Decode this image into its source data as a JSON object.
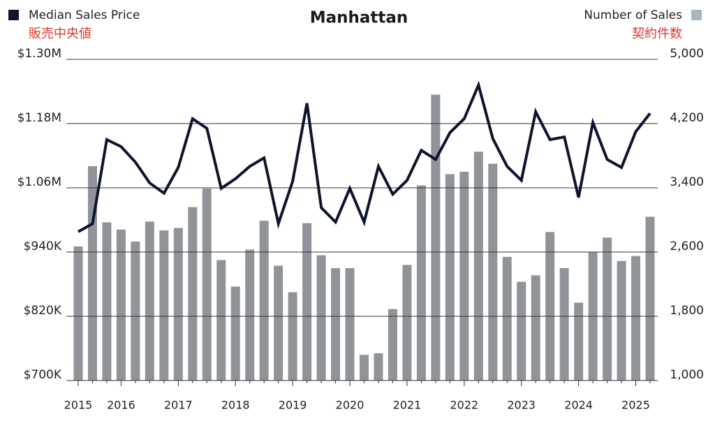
{
  "chart_data": {
    "type": "bar-line",
    "title": "Manhattan",
    "categories": [
      "2015",
      null,
      null,
      "2016",
      null,
      null,
      null,
      "2017",
      null,
      null,
      null,
      "2018",
      null,
      null,
      null,
      "2019",
      null,
      null,
      null,
      "2020",
      null,
      null,
      null,
      "2021",
      null,
      null,
      null,
      "2022",
      null,
      null,
      null,
      "2023",
      null,
      null,
      null,
      "2024",
      null,
      null,
      null,
      "2025",
      null
    ],
    "series": [
      {
        "name": "Median Sales Price",
        "label_ja": "販売中央値",
        "type": "line",
        "axis": "y",
        "color": "#0e1330",
        "values": [
          978000,
          993000,
          1150000,
          1137000,
          1108000,
          1069000,
          1050000,
          1098000,
          1189000,
          1171000,
          1059000,
          1077000,
          1100000,
          1116000,
          993000,
          1072000,
          1218000,
          1023000,
          996000,
          1059000,
          996000,
          1100000,
          1048000,
          1074000,
          1130000,
          1113000,
          1163000,
          1189000,
          1252000,
          1152000,
          1100000,
          1074000,
          1202000,
          1150000,
          1155000,
          1042000,
          1182000,
          1113000,
          1098000,
          1165000,
          1199000
        ]
      },
      {
        "name": "Number of Sales",
        "label_ja": "契約件数",
        "type": "bar",
        "axis": "y2",
        "color": "#909398",
        "values": [
          2670,
          3670,
          2970,
          2880,
          2730,
          2980,
          2870,
          2900,
          3160,
          3390,
          2500,
          2170,
          2630,
          2990,
          2430,
          2100,
          2960,
          2560,
          2400,
          2400,
          1320,
          1340,
          1890,
          2440,
          3430,
          4560,
          3570,
          3600,
          3850,
          3700,
          2540,
          2230,
          2310,
          2850,
          2400,
          1970,
          2600,
          2780,
          2490,
          2550,
          3040
        ]
      }
    ],
    "ylim": [
      700000,
      1300000
    ],
    "yticks": [
      {
        "value": 700000,
        "label": "$700K"
      },
      {
        "value": 820000,
        "label": "$820K"
      },
      {
        "value": 940000,
        "label": "$940K"
      },
      {
        "value": 1060000,
        "label": "$1.06M"
      },
      {
        "value": 1180000,
        "label": "$1.18M"
      },
      {
        "value": 1300000,
        "label": "$1.30M"
      }
    ],
    "y2lim": [
      1000,
      5000
    ],
    "y2ticks": [
      {
        "value": 1000,
        "label": "1,000"
      },
      {
        "value": 1800,
        "label": "1,800"
      },
      {
        "value": 2600,
        "label": "2,600"
      },
      {
        "value": 3400,
        "label": "3,400"
      },
      {
        "value": 4200,
        "label": "4,200"
      },
      {
        "value": 5000,
        "label": "5,000"
      }
    ],
    "grid": true
  }
}
